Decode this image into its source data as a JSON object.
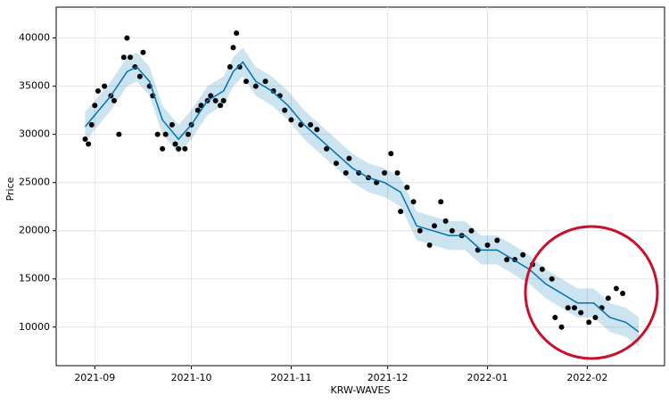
{
  "chart_data": {
    "type": "forecast",
    "x_label": "KRW-WAVES",
    "y_label": "Price",
    "xlim": [
      -12,
      177
    ],
    "ylim": [
      6000,
      43200
    ],
    "xticks": [
      {
        "value": 0,
        "label": "2021-09"
      },
      {
        "value": 30,
        "label": "2021-10"
      },
      {
        "value": 61,
        "label": "2021-11"
      },
      {
        "value": 91,
        "label": "2021-12"
      },
      {
        "value": 122,
        "label": "2022-01"
      },
      {
        "value": 153,
        "label": "2022-02"
      }
    ],
    "yticks": [
      10000,
      15000,
      20000,
      25000,
      30000,
      35000,
      40000
    ],
    "grid": true,
    "series": [
      {
        "kind": "scatter",
        "color": "#000000",
        "x": [
          -3,
          -2,
          -1,
          0,
          1,
          3,
          5,
          6,
          7.5,
          9,
          10,
          11,
          12.5,
          14,
          15,
          17,
          18,
          19.5,
          21,
          22,
          24,
          25,
          26,
          28,
          29,
          30,
          32,
          33,
          35,
          36,
          37.5,
          39,
          40,
          42,
          43,
          44,
          45,
          47,
          50,
          53,
          55.5,
          57.5,
          59,
          61,
          64,
          67,
          69,
          72,
          75,
          78,
          79,
          82,
          85,
          87.5,
          90,
          92,
          94,
          95,
          97,
          99,
          101,
          104,
          105.5,
          107.5,
          109,
          111,
          114,
          117,
          119,
          122,
          125,
          128,
          130.5,
          133,
          136,
          139,
          142,
          143,
          145,
          147,
          149,
          151,
          153.5,
          155.5,
          157.5,
          159.5,
          162,
          164
        ],
        "values": [
          29500,
          29000,
          31000,
          33000,
          34500,
          35000,
          34000,
          33500,
          30000,
          38000,
          40000,
          38000,
          37000,
          36000,
          38500,
          35000,
          34000,
          30000,
          28500,
          30000,
          31000,
          29000,
          28500,
          28500,
          30000,
          31000,
          32500,
          33000,
          33500,
          34000,
          33500,
          33000,
          33500,
          37000,
          39000,
          40500,
          37000,
          35500,
          35000,
          35500,
          34500,
          34000,
          32500,
          31500,
          31000,
          31000,
          30500,
          28500,
          27000,
          26000,
          27500,
          26000,
          25500,
          25000,
          26000,
          28000,
          26000,
          22000,
          24500,
          23000,
          20000,
          18500,
          20500,
          23000,
          21000,
          20000,
          19500,
          20000,
          18000,
          18500,
          19000,
          17000,
          17000,
          17500,
          16500,
          16000,
          15000,
          11000,
          10000,
          12000,
          12000,
          11500,
          10500,
          11000,
          12000,
          13000,
          14000,
          13500
        ]
      },
      {
        "kind": "line",
        "color": "#0072B2",
        "x": [
          -3,
          0,
          5,
          10,
          13,
          17,
          21,
          26,
          30,
          35,
          40,
          43,
          46,
          50,
          55,
          60,
          65,
          70,
          75,
          80,
          85,
          90,
          95,
          100,
          105,
          110,
          115,
          120,
          125,
          130,
          135,
          140,
          145,
          150,
          155,
          160,
          165,
          169
        ],
        "values": [
          30800,
          32000,
          34000,
          36500,
          37000,
          35500,
          31500,
          29500,
          31000,
          33500,
          34500,
          36500,
          37500,
          35500,
          34500,
          33000,
          31000,
          29500,
          28000,
          26500,
          25500,
          25000,
          24000,
          20500,
          20000,
          19500,
          19500,
          18000,
          18000,
          17000,
          16000,
          14500,
          13500,
          12500,
          12500,
          11000,
          10500,
          9500
        ]
      },
      {
        "kind": "band",
        "color": "#0072B2",
        "x": [
          -3,
          0,
          5,
          10,
          13,
          17,
          21,
          26,
          30,
          35,
          40,
          43,
          46,
          50,
          55,
          60,
          65,
          70,
          75,
          80,
          85,
          90,
          95,
          100,
          105,
          110,
          115,
          120,
          125,
          130,
          135,
          140,
          145,
          150,
          155,
          160,
          165,
          169
        ],
        "lower": [
          29300,
          30500,
          32500,
          35000,
          35500,
          34000,
          30000,
          28000,
          29500,
          32000,
          33000,
          35000,
          36000,
          34000,
          33000,
          31500,
          29500,
          28000,
          26500,
          25000,
          24000,
          23500,
          22500,
          19000,
          18500,
          18000,
          18000,
          16500,
          16500,
          15500,
          14500,
          13000,
          12000,
          11000,
          11000,
          9500,
          9000,
          8000
        ],
        "upper": [
          32300,
          33500,
          35500,
          38000,
          38500,
          37000,
          33000,
          31000,
          32500,
          35000,
          36000,
          38000,
          39000,
          37000,
          36000,
          34500,
          32500,
          31000,
          29500,
          28000,
          27000,
          26500,
          25500,
          22000,
          21500,
          21000,
          21000,
          19500,
          19500,
          18500,
          17500,
          16000,
          15000,
          14000,
          14000,
          12500,
          12000,
          11000
        ]
      }
    ]
  }
}
